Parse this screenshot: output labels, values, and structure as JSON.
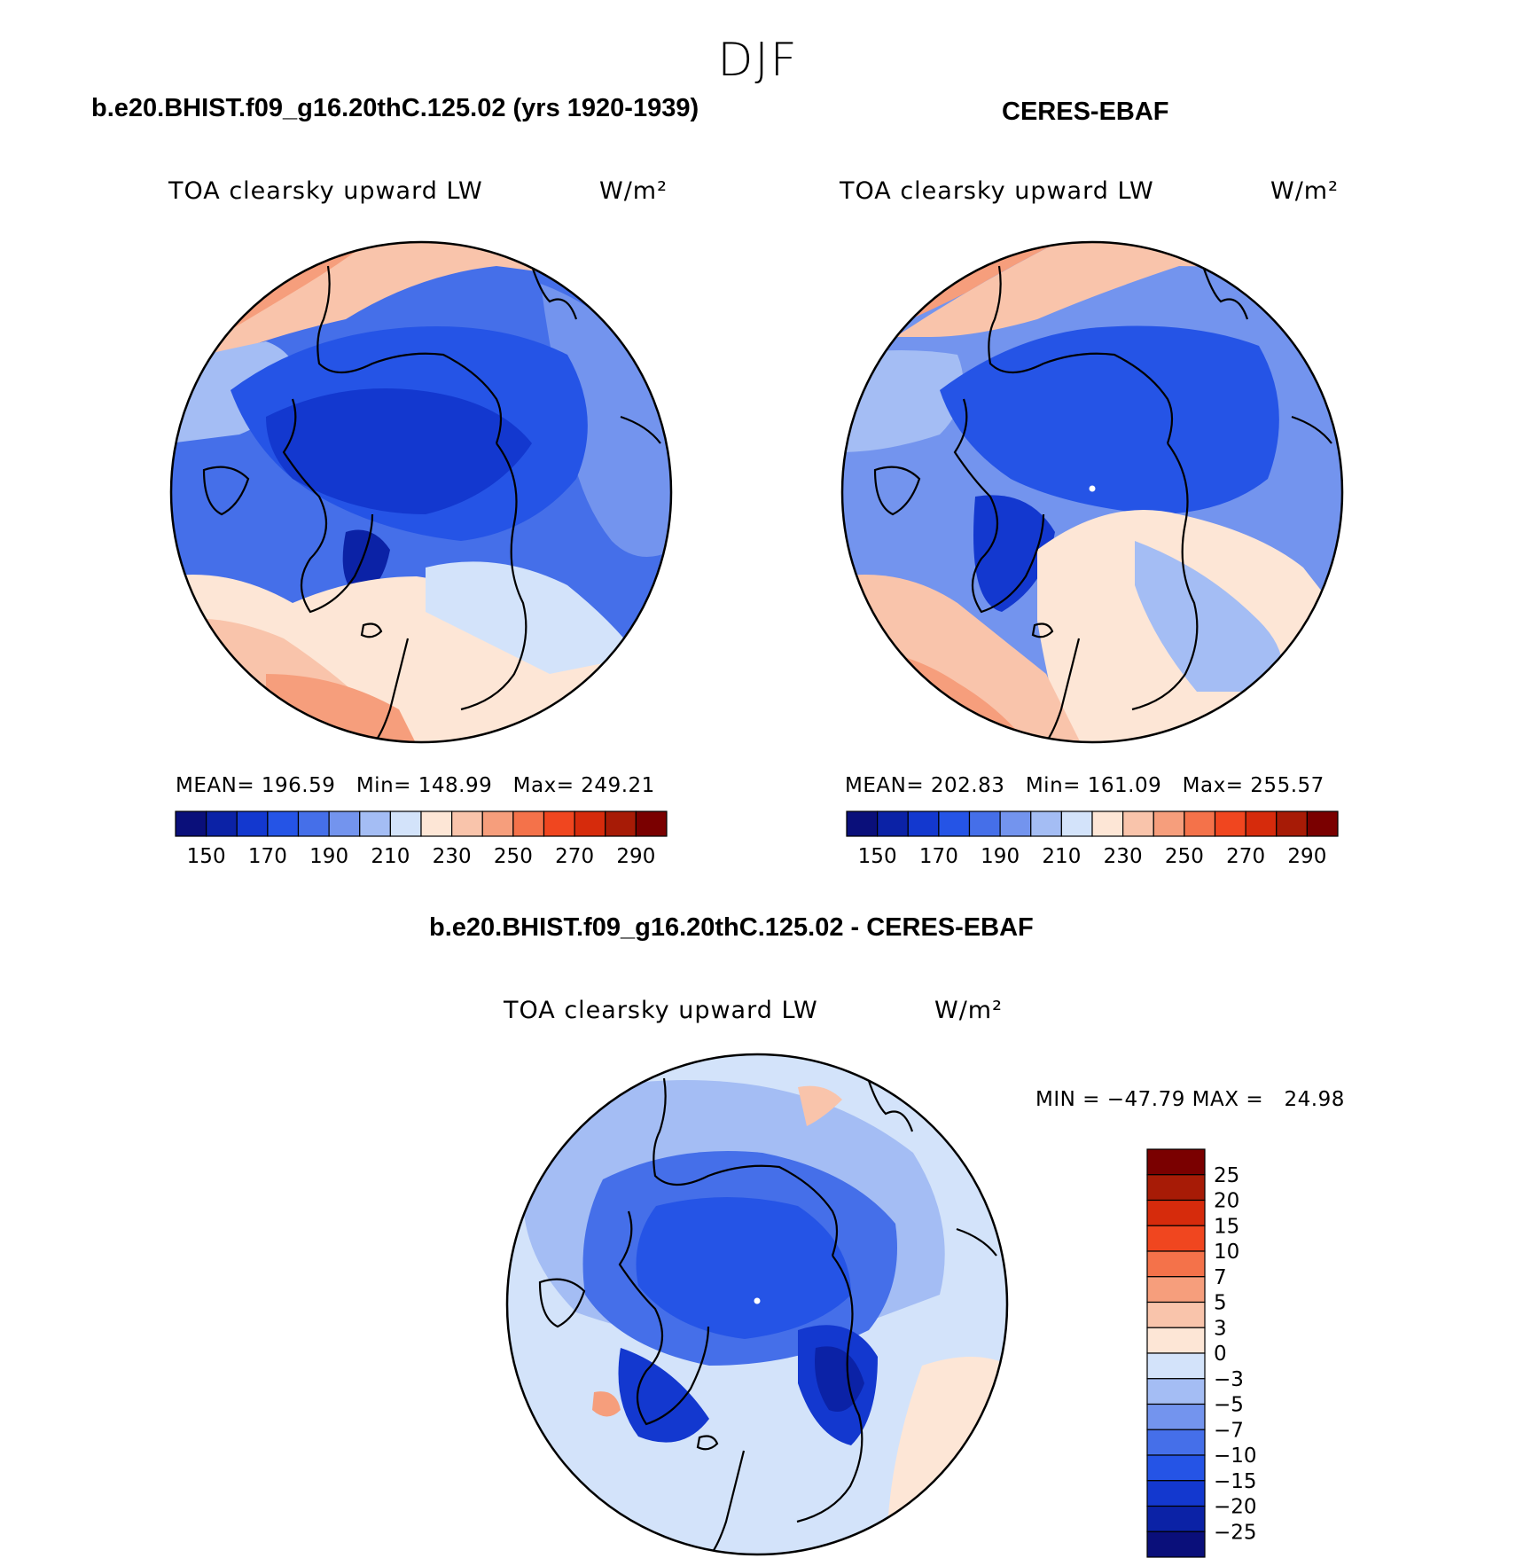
{
  "figure": {
    "season": "DJF"
  },
  "panels": [
    {
      "title": "b.e20.BHIST.f09_g16.20thC.125.02 (yrs 1920-1939)",
      "variable": "TOA clearsky upward LW",
      "units": "W/m²",
      "stats": {
        "mean_label": "MEAN=",
        "mean": "196.59",
        "min_label": "Min=",
        "min": "148.99",
        "max_label": "Max=",
        "max": "249.21"
      }
    },
    {
      "title": "CERES-EBAF",
      "variable": "TOA clearsky upward LW",
      "units": "W/m²",
      "stats": {
        "mean_label": "MEAN=",
        "mean": "202.83",
        "min_label": "Min=",
        "min": "161.09",
        "max_label": "Max=",
        "max": "255.57"
      }
    },
    {
      "title": "b.e20.BHIST.f09_g16.20thC.125.02 - CERES-EBAF",
      "variable": "TOA clearsky upward LW",
      "units": "W/m²",
      "stats": {
        "min_label": "MIN =",
        "min": "−47.79",
        "max_label": "MAX =",
        "max": "24.98"
      }
    }
  ],
  "colorbars": {
    "absolute": {
      "colors": [
        "#0a0f7a",
        "#0b22a6",
        "#1338cf",
        "#2554e6",
        "#456fe9",
        "#7394ee",
        "#a4bdf4",
        "#d3e3fa",
        "#fde6d6",
        "#f9c4ab",
        "#f69e7c",
        "#f4724a",
        "#f0461f",
        "#d62b0c",
        "#a71b06",
        "#7a0000"
      ],
      "tick_labels": [
        "150",
        "170",
        "190",
        "210",
        "230",
        "250",
        "270",
        "290"
      ]
    },
    "difference": {
      "colors": [
        "#0a0f7a",
        "#0b22a6",
        "#1338cf",
        "#2554e6",
        "#456fe9",
        "#7394ee",
        "#a4bdf4",
        "#d3e3fa",
        "#fde6d6",
        "#f9c4ab",
        "#f69e7c",
        "#f4724a",
        "#f0461f",
        "#d62b0c",
        "#a71b06",
        "#7a0000"
      ],
      "tick_labels": [
        "25",
        "20",
        "15",
        "10",
        "7",
        "5",
        "3",
        "0",
        "−3",
        "−5",
        "−7",
        "−10",
        "−15",
        "−20",
        "−25"
      ]
    }
  },
  "map_colors": {
    "deep": "#0b22a6",
    "strong": "#1338cf",
    "blue": "#2554e6",
    "mid_blue": "#456fe9",
    "light_blue": "#7394ee",
    "pale_blue": "#a4bdf4",
    "very_pale_blue": "#d3e3fa",
    "cream": "#fde6d6",
    "light_orange": "#f9c4ab",
    "orange": "#f69e7c",
    "red_orange": "#f4724a",
    "coastline": "#000000"
  }
}
